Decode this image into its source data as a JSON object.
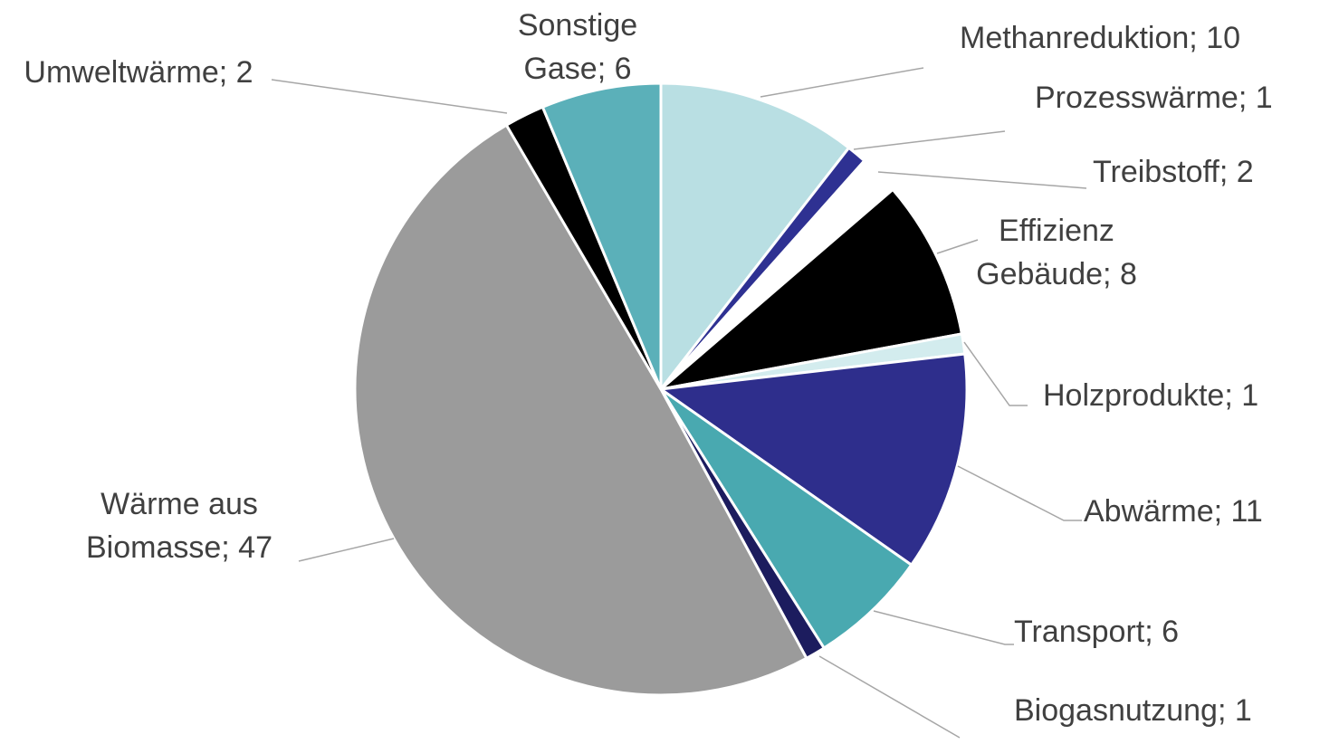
{
  "chart_data": {
    "type": "pie",
    "categories": [
      "Methanreduktion",
      "Prozesswärme",
      "Treibstoff",
      "Effizienz Gebäude",
      "Holzprodukte",
      "Abwärme",
      "Transport",
      "Biogasnutzung",
      "Wärme aus Biomasse",
      "Umweltwärme",
      "Sonstige Gase"
    ],
    "values": [
      10,
      1,
      2,
      8,
      1,
      11,
      6,
      1,
      47,
      2,
      6
    ],
    "colors": [
      "#b9dfe3",
      "#2e3192",
      "#ffffff",
      "#000000",
      "#d3ecee",
      "#2e2e8c",
      "#49a9b0",
      "#1c1c5e",
      "#9b9b9b",
      "#000000",
      "#5bb0b9"
    ]
  }
}
